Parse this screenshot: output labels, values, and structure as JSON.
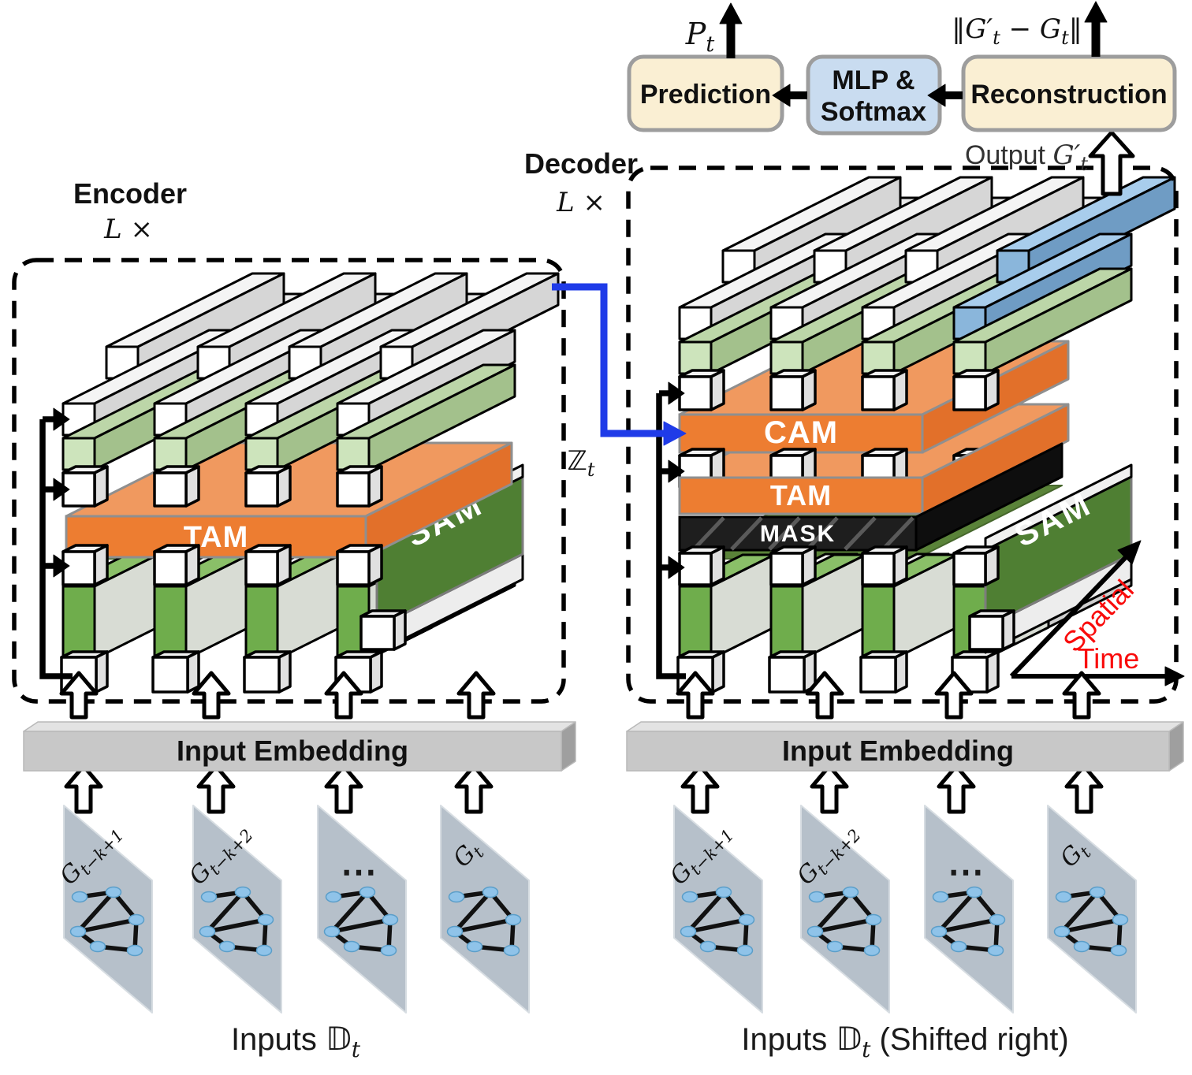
{
  "pipeline": {
    "prediction": "Prediction",
    "mlp_line1": "MLP &",
    "mlp_line2": "Softmax",
    "reconstruction": "Reconstruction",
    "pt_base": "P",
    "pt_sub": "t",
    "norm_p1": "‖G′",
    "norm_s1": "t",
    "norm_p2": " − G",
    "norm_s2": "t",
    "norm_p3": "‖",
    "output_word": "Output ",
    "output_var": "G′",
    "output_sub": "t"
  },
  "encoder": {
    "title": "Encoder",
    "multiplier": "L ×",
    "tam_label": "TAM",
    "sam_label": "SAM"
  },
  "decoder": {
    "title": "Decoder",
    "multiplier": "L ×",
    "cam_label": "CAM",
    "tam_label": "TAM",
    "mask_label": "MASK",
    "sam_label": "SAM",
    "latent_base": "ℤ",
    "latent_sub": "t"
  },
  "axes": {
    "spatial_label": "Spatial",
    "time_label": "Time"
  },
  "embedding": {
    "left_label": "Input Embedding",
    "right_label": "Input Embedding"
  },
  "inputs": {
    "left_caption": {
      "pre": "Inputs ",
      "bb": "𝔻",
      "sub": "t",
      "post": ""
    },
    "right_caption": {
      "pre": "Inputs ",
      "bb": "𝔻",
      "sub": "t",
      "post": " (Shifted right)"
    },
    "planes": [
      {
        "base": "G",
        "sub": "t−k+1"
      },
      {
        "base": "G",
        "sub": "t−k+2"
      },
      {
        "base": "⋯",
        "sub": ""
      },
      {
        "base": "G",
        "sub": "t"
      }
    ]
  },
  "colors": {
    "slab_orange": "#ED7D31",
    "slab_orange_top": "#F0995F",
    "sam_green": "#4F7F33",
    "column_green": "#6FAD4C",
    "bar_green_light": "#CDE4BC",
    "bar_blue": "#9DC3E6",
    "mask_black": "#1E1E1E",
    "box_cream": "#FAEFD3",
    "box_blue": "#C9DCF0",
    "link_blue": "#1F3BE8",
    "axis_red": "#F90B0B",
    "plane_gray": "#B6C0CA",
    "node_blue": "#8FC3E9",
    "embed_gray": "#C8C8C8"
  }
}
